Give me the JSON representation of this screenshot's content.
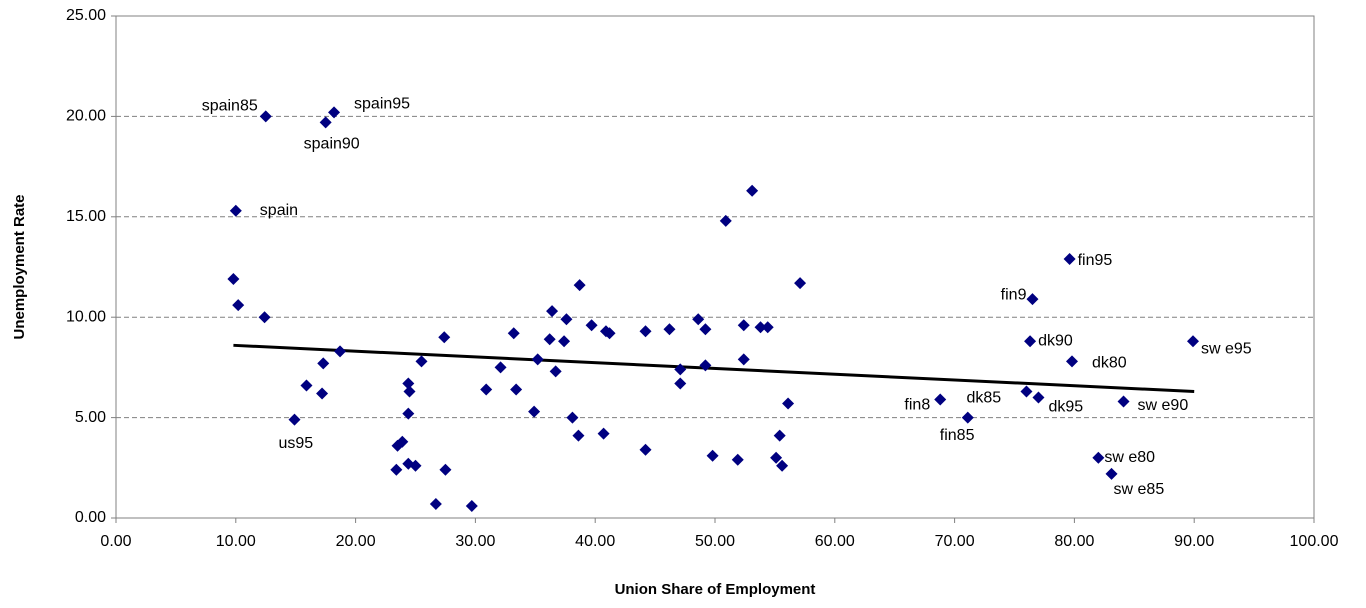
{
  "chart_data": {
    "type": "scatter",
    "x_label": "Union Share of Employment",
    "y_label": "Unemployment Rate",
    "xlim": [
      0,
      100
    ],
    "ylim": [
      0,
      25
    ],
    "xticks": [
      {
        "value": 0,
        "label": "0.00"
      },
      {
        "value": 10,
        "label": "10.00"
      },
      {
        "value": 20,
        "label": "20.00"
      },
      {
        "value": 30,
        "label": "30.00"
      },
      {
        "value": 40,
        "label": "40.00"
      },
      {
        "value": 50,
        "label": "50.00"
      },
      {
        "value": 60,
        "label": "60.00"
      },
      {
        "value": 70,
        "label": "70.00"
      },
      {
        "value": 80,
        "label": "80.00"
      },
      {
        "value": 90,
        "label": "90.00"
      },
      {
        "value": 100,
        "label": "100.00"
      }
    ],
    "yticks": [
      {
        "value": 0,
        "label": "0.00"
      },
      {
        "value": 5,
        "label": "5.00"
      },
      {
        "value": 10,
        "label": "10.00"
      },
      {
        "value": 15,
        "label": "15.00"
      },
      {
        "value": 20,
        "label": "20.00"
      },
      {
        "value": 25,
        "label": "25.00"
      }
    ],
    "grid": true,
    "color": "#000080",
    "x": [
      12.5,
      18.2,
      17.5,
      10.0,
      79.6,
      76.5,
      76.3,
      79.8,
      89.9,
      68.8,
      76.0,
      77.0,
      71.1,
      84.1,
      82.0,
      83.1,
      14.9,
      9.8,
      10.2,
      12.4,
      18.7,
      15.9,
      17.3,
      17.2,
      23.4,
      23.5,
      23.9,
      24.4,
      24.5,
      24.4,
      24.4,
      25.0,
      25.5,
      26.7,
      27.4,
      27.5,
      29.7,
      30.9,
      32.1,
      33.2,
      33.4,
      34.9,
      35.2,
      36.4,
      36.2,
      36.7,
      37.4,
      37.6,
      38.1,
      38.6,
      38.7,
      39.7,
      40.9,
      41.2,
      40.7,
      44.2,
      44.2,
      46.2,
      47.1,
      47.1,
      48.6,
      49.2,
      49.2,
      49.8,
      50.9,
      51.9,
      52.4,
      52.4,
      53.1,
      53.8,
      54.4,
      55.1,
      55.4,
      55.6,
      56.1,
      57.1
    ],
    "y": [
      20.0,
      20.2,
      19.7,
      15.3,
      12.9,
      10.9,
      8.8,
      7.8,
      8.8,
      5.9,
      6.3,
      6.0,
      5.0,
      5.8,
      3.0,
      2.2,
      4.9,
      11.9,
      10.6,
      10.0,
      8.3,
      6.6,
      7.7,
      6.2,
      2.4,
      3.6,
      3.8,
      6.7,
      6.3,
      5.2,
      2.7,
      2.6,
      7.8,
      0.7,
      9.0,
      2.4,
      0.6,
      6.4,
      7.5,
      9.2,
      6.4,
      5.3,
      7.9,
      10.3,
      8.9,
      7.3,
      8.8,
      9.9,
      5.0,
      4.1,
      11.6,
      9.6,
      9.3,
      9.2,
      4.2,
      9.3,
      3.4,
      9.4,
      7.4,
      6.7,
      9.9,
      9.4,
      7.6,
      3.1,
      14.8,
      2.9,
      9.6,
      7.9,
      16.3,
      9.5,
      9.5,
      3.0,
      4.1,
      2.6,
      5.7,
      11.7
    ],
    "labels": [
      "spain85",
      "spain95",
      "spain90",
      "spain",
      "fin95",
      "fin9",
      "dk90",
      "dk80",
      "sw e95",
      "fin8",
      "dk85",
      "dk95",
      "fin85",
      "sw e90",
      "sw e80",
      "sw e85",
      "us95"
    ],
    "trendline": {
      "x": [
        9.8,
        90.0
      ],
      "y": [
        8.6,
        6.3
      ],
      "color": "#000000"
    }
  }
}
